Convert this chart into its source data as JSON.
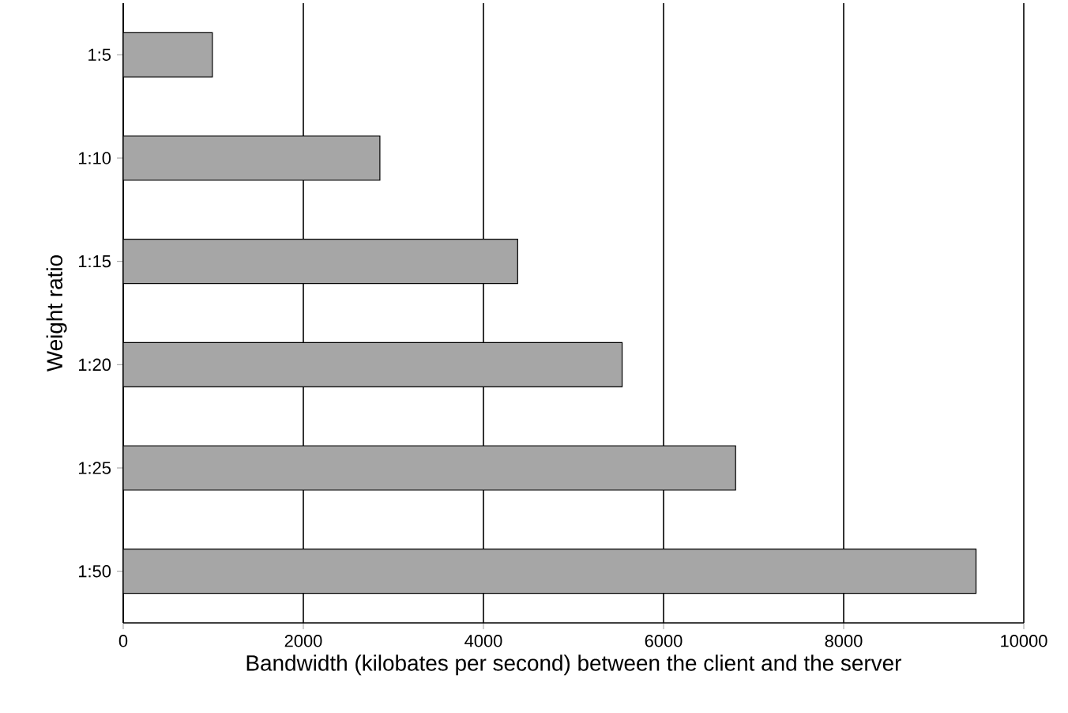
{
  "chart_data": {
    "type": "bar",
    "orientation": "horizontal",
    "xlabel": "Bandwidth (kilobates per second) between the client and the server",
    "ylabel": "Weight ratio",
    "categories": [
      "1:5",
      "1:10",
      "1:15",
      "1:20",
      "1:25",
      "1:50"
    ],
    "values": [
      990,
      2850,
      4380,
      5540,
      6800,
      9470
    ],
    "color": "#a6a6a6",
    "xlim": [
      0,
      10000
    ],
    "xticks": [
      0,
      2000,
      4000,
      6000,
      8000,
      10000
    ],
    "grid": "x"
  }
}
